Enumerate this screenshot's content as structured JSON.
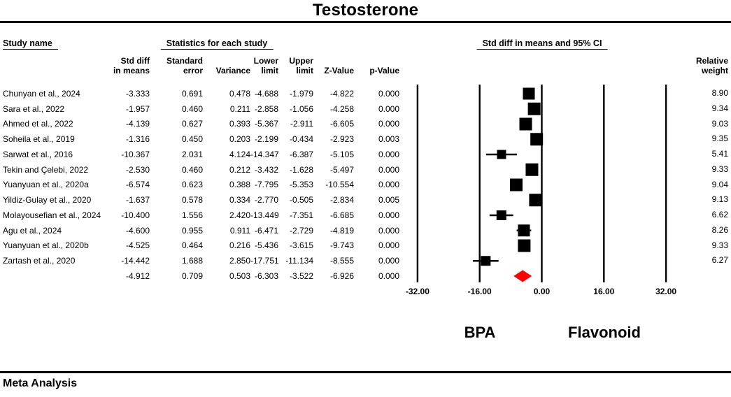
{
  "title": "Testosterone",
  "footer": "Meta Analysis",
  "table": {
    "study_col": "Study name",
    "section_title": "Statistics for each study",
    "headers": {
      "std_diff": [
        "Std diff",
        "in means"
      ],
      "standard_error": [
        "Standard",
        "error"
      ],
      "variance": [
        "",
        "Variance"
      ],
      "lower": [
        "Lower",
        "limit"
      ],
      "upper": [
        "Upper",
        "limit"
      ],
      "z": [
        "",
        "Z-Value"
      ],
      "p": [
        "",
        "p-Value"
      ]
    }
  },
  "plot": {
    "section_title": "Std diff in means and 95% CI",
    "weight_header": [
      "Relative",
      "weight"
    ],
    "group_left": "BPA",
    "group_right": "Flavonoid"
  },
  "chart_data": {
    "type": "forest",
    "title": "Testosterone",
    "xlabel_left": "BPA",
    "xlabel_right": "Flavonoid",
    "axis": {
      "xlim": [
        -32,
        32
      ],
      "ticks": [
        "-32.00",
        "-16.00",
        "0.00",
        "16.00",
        "32.00"
      ]
    },
    "columns": [
      "Std diff in means",
      "Standard error",
      "Variance",
      "Lower limit",
      "Upper limit",
      "Z-Value",
      "p-Value",
      "Relative weight"
    ],
    "marker_color": "#000000",
    "diamond_color": "#ff0000",
    "studies": [
      {
        "name": "Chunyan et al., 2024",
        "values": [
          "-3.333",
          "0.691",
          "0.478",
          "-4.688",
          "-1.979",
          "-4.822",
          "0.000"
        ],
        "weight": "8.90"
      },
      {
        "name": "Sara et al., 2022",
        "values": [
          "-1.957",
          "0.460",
          "0.211",
          "-2.858",
          "-1.056",
          "-4.258",
          "0.000"
        ],
        "weight": "9.34"
      },
      {
        "name": "Ahmed et al., 2022",
        "values": [
          "-4.139",
          "0.627",
          "0.393",
          "-5.367",
          "-2.911",
          "-6.605",
          "0.000"
        ],
        "weight": "9.03"
      },
      {
        "name": "Soheila et al., 2019",
        "values": [
          "-1.316",
          "0.450",
          "0.203",
          "-2.199",
          "-0.434",
          "-2.923",
          "0.003"
        ],
        "weight": "9.35"
      },
      {
        "name": "Sarwat et al., 2016",
        "values": [
          "-10.367",
          "2.031",
          "4.124",
          "-14.347",
          "-6.387",
          "-5.105",
          "0.000"
        ],
        "weight": "5.41"
      },
      {
        "name": "Tekin and Çelebi, 2022",
        "values": [
          "-2.530",
          "0.460",
          "0.212",
          "-3.432",
          "-1.628",
          "-5.497",
          "0.000"
        ],
        "weight": "9.33"
      },
      {
        "name": "Yuanyuan et al., 2020a",
        "values": [
          "-6.574",
          "0.623",
          "0.388",
          "-7.795",
          "-5.353",
          "-10.554",
          "0.000"
        ],
        "weight": "9.04"
      },
      {
        "name": "Yildiz-Gulay et al., 2020",
        "values": [
          "-1.637",
          "0.578",
          "0.334",
          "-2.770",
          "-0.505",
          "-2.834",
          "0.005"
        ],
        "weight": "9.13"
      },
      {
        "name": "Molayousefian et al., 2024",
        "values": [
          "-10.400",
          "1.556",
          "2.420",
          "-13.449",
          "-7.351",
          "-6.685",
          "0.000"
        ],
        "weight": "6.62"
      },
      {
        "name": "Agu et al., 2024",
        "values": [
          "-4.600",
          "0.955",
          "0.911",
          "-6.471",
          "-2.729",
          "-4.819",
          "0.000"
        ],
        "weight": "8.26"
      },
      {
        "name": "Yuanyuan et al., 2020b",
        "values": [
          "-4.525",
          "0.464",
          "0.216",
          "-5.436",
          "-3.615",
          "-9.743",
          "0.000"
        ],
        "weight": "9.33"
      },
      {
        "name": "Zartash et al., 2020",
        "values": [
          "-14.442",
          "1.688",
          "2.850",
          "-17.751",
          "-11.134",
          "-8.555",
          "0.000"
        ],
        "weight": "6.27"
      }
    ],
    "overall": {
      "name": "",
      "values": [
        "-4.912",
        "0.709",
        "0.503",
        "-6.303",
        "-3.522",
        "-6.926",
        "0.000"
      ],
      "weight": ""
    }
  }
}
